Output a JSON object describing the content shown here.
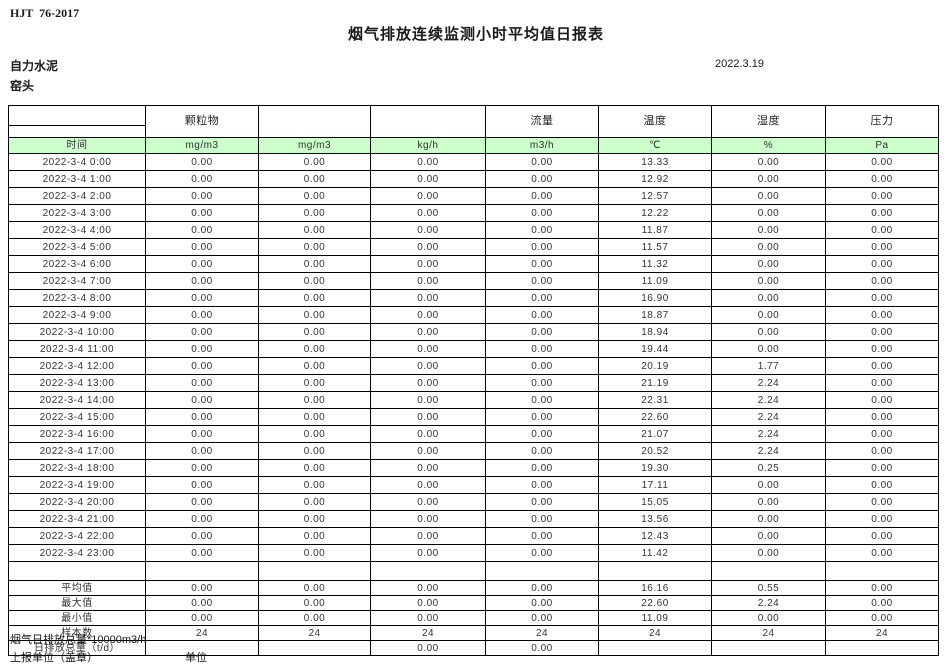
{
  "header": {
    "standard": "HJT  76-2017",
    "title": "烟气排放连续监测小时平均值日报表",
    "company": "自力水泥",
    "station": "窑头",
    "date": "2022.3.19"
  },
  "table": {
    "param_headers": [
      "",
      "颗粒物",
      "",
      "",
      "流量",
      "温度",
      "湿度",
      "压力"
    ],
    "unit_row": [
      "时间",
      "mg/m3",
      "mg/m3",
      "kg/h",
      "m3/h",
      "℃",
      "%",
      "Pa"
    ],
    "rows": [
      [
        "2022-3-4 0:00",
        "0.00",
        "0.00",
        "0.00",
        "0.00",
        "13.33",
        "0.00",
        "0.00"
      ],
      [
        "2022-3-4 1:00",
        "0.00",
        "0.00",
        "0.00",
        "0.00",
        "12.92",
        "0.00",
        "0.00"
      ],
      [
        "2022-3-4 2:00",
        "0.00",
        "0.00",
        "0.00",
        "0.00",
        "12.57",
        "0.00",
        "0.00"
      ],
      [
        "2022-3-4 3:00",
        "0.00",
        "0.00",
        "0.00",
        "0.00",
        "12.22",
        "0.00",
        "0.00"
      ],
      [
        "2022-3-4 4:00",
        "0.00",
        "0.00",
        "0.00",
        "0.00",
        "11.87",
        "0.00",
        "0.00"
      ],
      [
        "2022-3-4 5:00",
        "0.00",
        "0.00",
        "0.00",
        "0.00",
        "11.57",
        "0.00",
        "0.00"
      ],
      [
        "2022-3-4 6:00",
        "0.00",
        "0.00",
        "0.00",
        "0.00",
        "11.32",
        "0.00",
        "0.00"
      ],
      [
        "2022-3-4 7:00",
        "0.00",
        "0.00",
        "0.00",
        "0.00",
        "11.09",
        "0.00",
        "0.00"
      ],
      [
        "2022-3-4 8:00",
        "0.00",
        "0.00",
        "0.00",
        "0.00",
        "16.90",
        "0.00",
        "0.00"
      ],
      [
        "2022-3-4 9:00",
        "0.00",
        "0.00",
        "0.00",
        "0.00",
        "18.87",
        "0.00",
        "0.00"
      ],
      [
        "2022-3-4 10:00",
        "0.00",
        "0.00",
        "0.00",
        "0.00",
        "18.94",
        "0.00",
        "0.00"
      ],
      [
        "2022-3-4 11:00",
        "0.00",
        "0.00",
        "0.00",
        "0.00",
        "19.44",
        "0.00",
        "0.00"
      ],
      [
        "2022-3-4 12:00",
        "0.00",
        "0.00",
        "0.00",
        "0.00",
        "20.19",
        "1.77",
        "0.00"
      ],
      [
        "2022-3-4 13:00",
        "0.00",
        "0.00",
        "0.00",
        "0.00",
        "21.19",
        "2.24",
        "0.00"
      ],
      [
        "2022-3-4 14:00",
        "0.00",
        "0.00",
        "0.00",
        "0.00",
        "22.31",
        "2.24",
        "0.00"
      ],
      [
        "2022-3-4 15:00",
        "0.00",
        "0.00",
        "0.00",
        "0.00",
        "22.60",
        "2.24",
        "0.00"
      ],
      [
        "2022-3-4 16:00",
        "0.00",
        "0.00",
        "0.00",
        "0.00",
        "21.07",
        "2.24",
        "0.00"
      ],
      [
        "2022-3-4 17:00",
        "0.00",
        "0.00",
        "0.00",
        "0.00",
        "20.52",
        "2.24",
        "0.00"
      ],
      [
        "2022-3-4 18:00",
        "0.00",
        "0.00",
        "0.00",
        "0.00",
        "19.30",
        "0.25",
        "0.00"
      ],
      [
        "2022-3-4 19:00",
        "0.00",
        "0.00",
        "0.00",
        "0.00",
        "17.11",
        "0.00",
        "0.00"
      ],
      [
        "2022-3-4 20:00",
        "0.00",
        "0.00",
        "0.00",
        "0.00",
        "15.05",
        "0.00",
        "0.00"
      ],
      [
        "2022-3-4 21:00",
        "0.00",
        "0.00",
        "0.00",
        "0.00",
        "13.56",
        "0.00",
        "0.00"
      ],
      [
        "2022-3-4 22:00",
        "0.00",
        "0.00",
        "0.00",
        "0.00",
        "12.43",
        "0.00",
        "0.00"
      ],
      [
        "2022-3-4 23:00",
        "0.00",
        "0.00",
        "0.00",
        "0.00",
        "11.42",
        "0.00",
        "0.00"
      ]
    ],
    "summary": [
      {
        "label": "平均值",
        "values": [
          "0.00",
          "0.00",
          "0.00",
          "0.00",
          "16.16",
          "0.55",
          "0.00"
        ]
      },
      {
        "label": "最大值",
        "values": [
          "0.00",
          "0.00",
          "0.00",
          "0.00",
          "22.60",
          "2.24",
          "0.00"
        ]
      },
      {
        "label": "最小值",
        "values": [
          "0.00",
          "0.00",
          "0.00",
          "0.00",
          "11.09",
          "0.00",
          "0.00"
        ]
      },
      {
        "label": "样本数",
        "values": [
          "24",
          "24",
          "24",
          "24",
          "24",
          "24",
          "24"
        ]
      },
      {
        "label": "日排放总量（t/d）",
        "values": [
          "",
          "",
          "0.00",
          "0.00",
          "",
          "",
          ""
        ]
      }
    ]
  },
  "footer": {
    "note": "烟气日排放总量*10000m3/h",
    "report_unit_label": "上报单位（盖章）",
    "unit_label": "单位"
  },
  "colors": {
    "unit_row_green": "#ccffcc",
    "border": "#000000"
  }
}
